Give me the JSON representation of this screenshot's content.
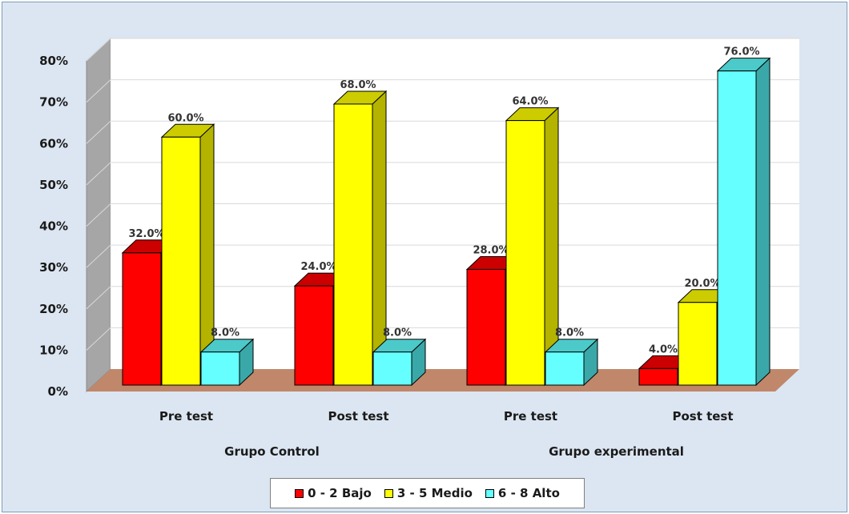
{
  "chart_data": {
    "type": "bar",
    "title": "",
    "xlabel": "",
    "ylabel": "",
    "ylim": [
      0,
      80
    ],
    "yticks": [
      "0%",
      "10%",
      "20%",
      "30%",
      "40%",
      "50%",
      "60%",
      "70%",
      "80%"
    ],
    "yticks_values": [
      0,
      10,
      20,
      30,
      40,
      50,
      60,
      70,
      80
    ],
    "grid": true,
    "legend_position": "bottom",
    "groups": [
      {
        "label": "Grupo Control",
        "categories": [
          "Pre test",
          "Post test"
        ]
      },
      {
        "label": "Grupo experimental",
        "categories": [
          "Pre test",
          "Post test"
        ]
      }
    ],
    "categories": [
      "Pre test",
      "Post test",
      "Pre test",
      "Post test"
    ],
    "series": [
      {
        "name": "0 - 2 Bajo",
        "color": "#ff0000",
        "values": [
          32,
          24,
          28,
          4
        ],
        "labels": [
          "32.0%",
          "24.0%",
          "28.0%",
          "4.0%"
        ]
      },
      {
        "name": "3 - 5 Medio",
        "color": "#ffff00",
        "values": [
          60,
          68,
          64,
          20
        ],
        "labels": [
          "60.0%",
          "68.0%",
          "64.0%",
          "20.0%"
        ]
      },
      {
        "name": "6 - 8 Alto",
        "color": "#66ffff",
        "values": [
          8,
          8,
          8,
          76
        ],
        "labels": [
          "8.0%",
          "8.0%",
          "8.0%",
          "76.0%"
        ]
      }
    ]
  }
}
